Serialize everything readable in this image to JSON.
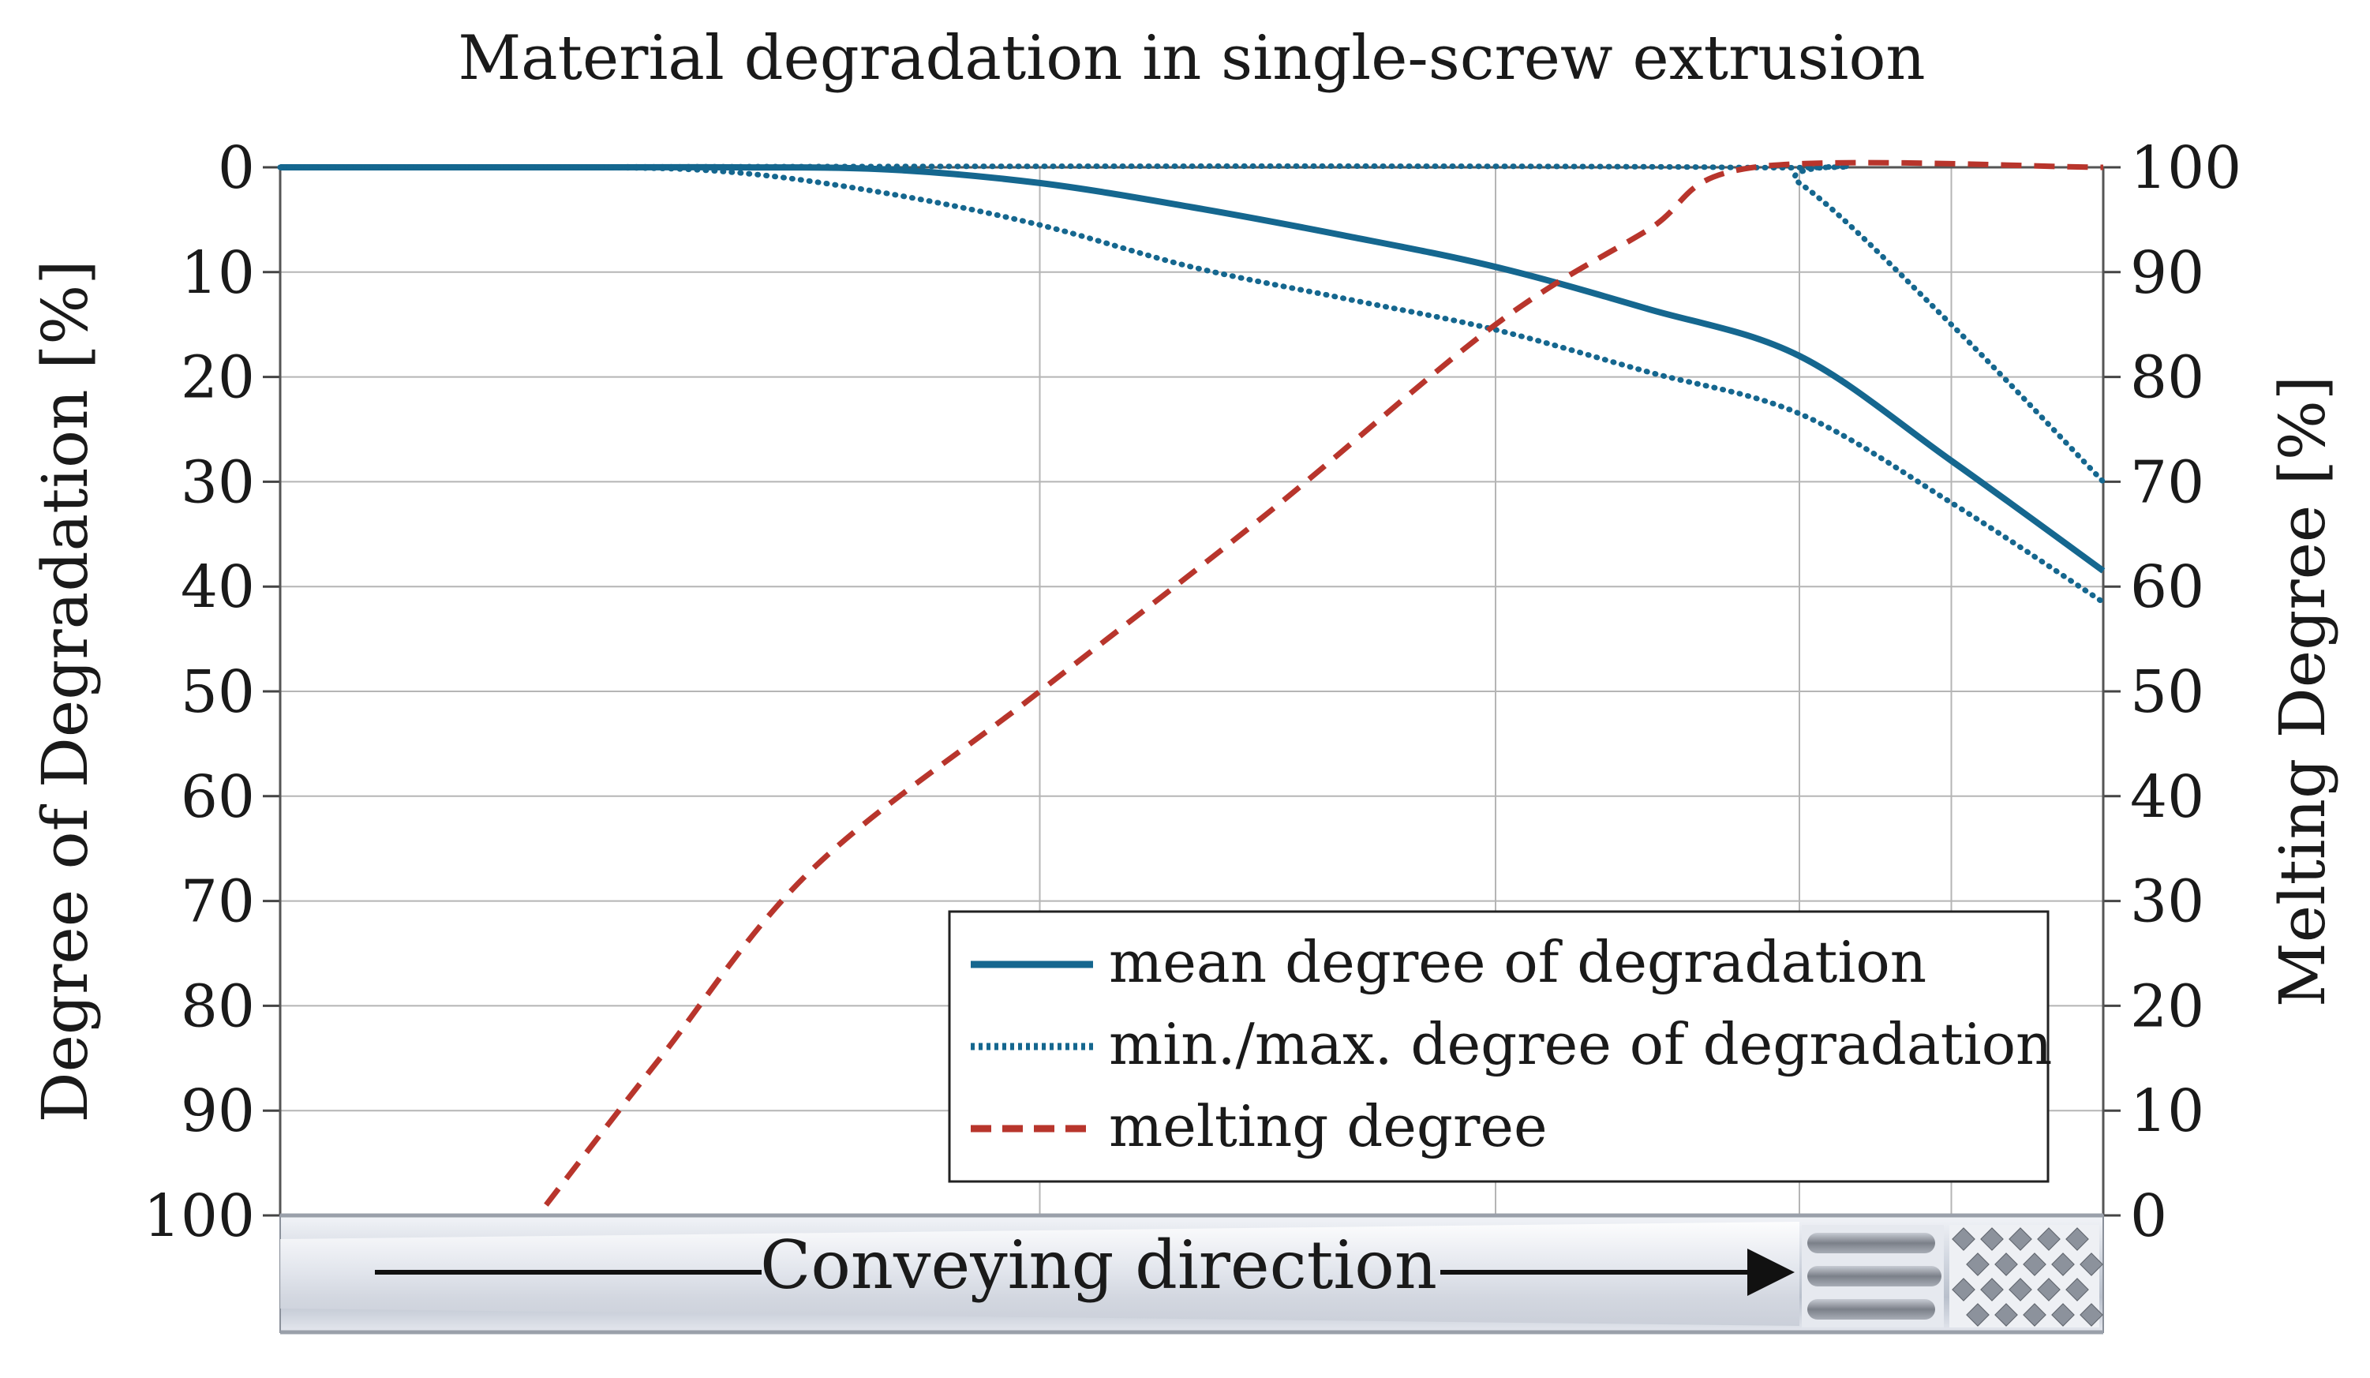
{
  "chart_data": {
    "type": "line",
    "title": "Material degradation in single-screw extrusion",
    "ylabel_left": "Degree of Degradation [%]",
    "ylabel_right": "Melting Degree [%]",
    "y_left_ticks": [
      "0",
      "10",
      "20",
      "30",
      "40",
      "50",
      "60",
      "70",
      "80",
      "90",
      "100"
    ],
    "y_right_ticks": [
      "100",
      "90",
      "80",
      "70",
      "60",
      "50",
      "40",
      "30",
      "20",
      "10",
      "0"
    ],
    "y_left_range": [
      0,
      100
    ],
    "y_left_inverted": true,
    "y_right_range": [
      0,
      100
    ],
    "x_range": [
      0,
      12
    ],
    "x_gridlines": [
      5,
      8,
      10,
      11
    ],
    "grid": true,
    "legend_position": "bottom-right",
    "screw_label": "Conveying direction",
    "series": [
      {
        "name": "mean degree of degradation",
        "axis": "left",
        "style": "solid",
        "color": "#15678f",
        "x": [
          0,
          2,
          3,
          4,
          5,
          6,
          7,
          8,
          9,
          10,
          11,
          12
        ],
        "y": [
          0,
          0,
          0,
          0.2,
          1.5,
          3.8,
          6.5,
          9.5,
          13.5,
          18,
          28,
          38.5
        ]
      },
      {
        "name": "min./max. degree of degradation",
        "axis": "left",
        "style": "dotted",
        "color": "#15678f",
        "x": [
          0,
          2,
          3,
          4,
          5,
          6,
          7,
          8,
          9,
          10,
          11,
          12
        ],
        "y": [
          0,
          0,
          0.5,
          2.5,
          5.5,
          9.5,
          12.5,
          15.5,
          19.5,
          23.5,
          32,
          41.5
        ]
      },
      {
        "name": "",
        "axis": "left",
        "style": "dotted",
        "color": "#15678f",
        "x": [
          0,
          9.5,
          10,
          11,
          12
        ],
        "y": [
          0,
          0,
          1.5,
          15,
          30
        ]
      },
      {
        "name": "melting degree",
        "axis": "right",
        "style": "dashed",
        "color": "#b8352c",
        "x": [
          1.75,
          2.5,
          3.5,
          5,
          6.5,
          8,
          9,
          9.7,
          12
        ],
        "y": [
          1,
          15,
          33,
          50,
          67,
          85,
          94,
          100,
          100
        ]
      }
    ],
    "colors": {
      "blue": "#15678f",
      "red": "#b8352c",
      "grid": "#b5b5b5"
    }
  }
}
